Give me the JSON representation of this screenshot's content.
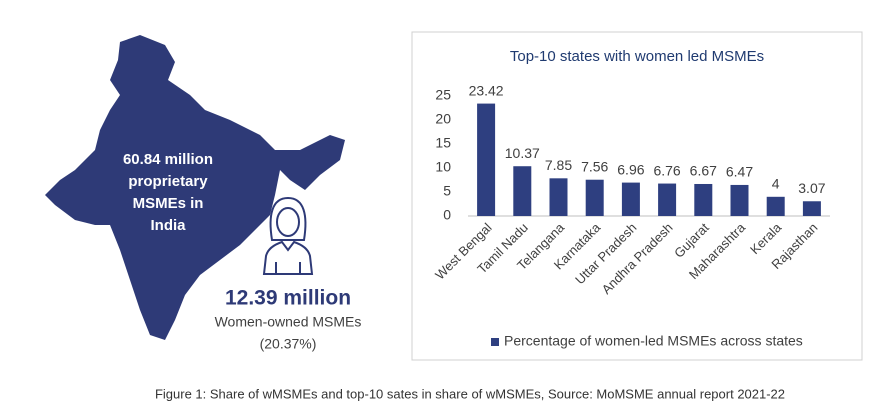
{
  "infographic": {
    "map_lines": [
      "60.84 million",
      "proprietary",
      "MSMEs in",
      "India"
    ],
    "headline": "12.39 million",
    "subtitle": "Women-owned MSMEs",
    "share": "(20.37%)"
  },
  "caption": "Figure 1: Share of wMSMEs and top-10 sates in share of wMSMEs, Source: MoMSME annual report 2021-22",
  "chart_data": {
    "type": "bar",
    "title": "Top-10 states with women led MSMEs",
    "categories": [
      "West Bengal",
      "Tamil Nadu",
      "Telangana",
      "Karnataka",
      "Uttar Pradesh",
      "Andhra Pradesh",
      "Gujarat",
      "Maharashtra",
      "Kerala",
      "Rajasthan"
    ],
    "series": [
      {
        "name": "Percentage of women-led MSMEs across states",
        "color": "#2e3f80",
        "values": [
          23.42,
          10.37,
          7.85,
          7.56,
          6.96,
          6.76,
          6.67,
          6.47,
          4,
          3.07
        ]
      }
    ],
    "ylim": [
      0,
      25
    ],
    "yticks": [
      0,
      5,
      10,
      15,
      20,
      25
    ],
    "grid": false,
    "legend": "bottom"
  }
}
